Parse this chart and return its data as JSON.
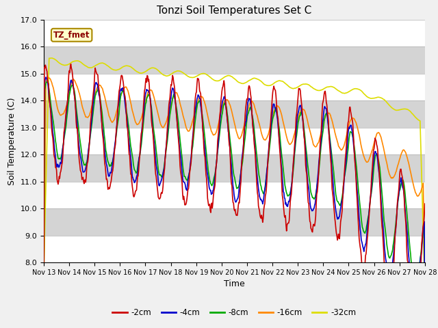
{
  "title": "Tonzi Soil Temperatures Set C",
  "xlabel": "Time",
  "ylabel": "Soil Temperature (C)",
  "ylim": [
    8.0,
    17.0
  ],
  "yticks": [
    8.0,
    9.0,
    10.0,
    11.0,
    12.0,
    13.0,
    14.0,
    15.0,
    16.0,
    17.0
  ],
  "colors": {
    "-2cm": "#cc0000",
    "-4cm": "#0000cc",
    "-8cm": "#00aa00",
    "-16cm": "#ff8800",
    "-32cm": "#dddd00"
  },
  "legend_label": "TZ_fmet",
  "x_tick_labels": [
    "Nov 13",
    "Nov 14",
    "Nov 15",
    "Nov 16",
    "Nov 17",
    "Nov 18",
    "Nov 19",
    "Nov 20",
    "Nov 21",
    "Nov 22",
    "Nov 23",
    "Nov 24",
    "Nov 25",
    "Nov 26",
    "Nov 27",
    "Nov 28"
  ],
  "n_days": 15,
  "n_pts": 720,
  "figsize": [
    6.4,
    4.8
  ],
  "dpi": 100
}
